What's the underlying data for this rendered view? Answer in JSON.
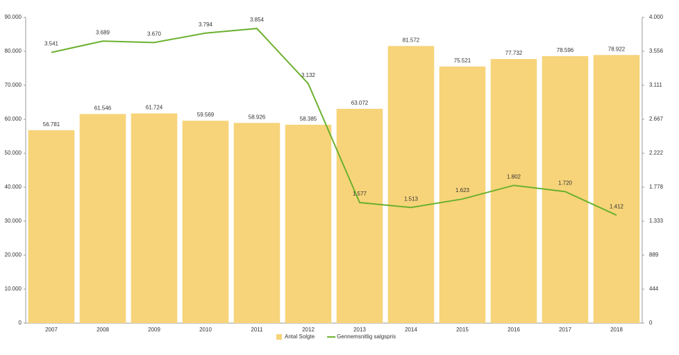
{
  "chart_data": {
    "type": "bar",
    "categories": [
      "2007",
      "2008",
      "2009",
      "2010",
      "2011",
      "2012",
      "2013",
      "2014",
      "2015",
      "2016",
      "2017",
      "2018"
    ],
    "series": [
      {
        "name": "Antal Solgte",
        "type": "bar",
        "color": "#f7d47a",
        "values": [
          56781,
          61546,
          61724,
          59569,
          58926,
          58385,
          63072,
          81572,
          75521,
          77732,
          78596,
          78922
        ],
        "value_labels": [
          "56.781",
          "61.546",
          "61.724",
          "59.569",
          "58.926",
          "58.385",
          "63.072",
          "81.572",
          "75.521",
          "77.732",
          "78.596",
          "78.922"
        ]
      },
      {
        "name": "Gennemsnitlig salgspris",
        "type": "line",
        "axis": "y2",
        "color": "#6bb02e",
        "values": [
          3541,
          3689,
          3670,
          3794,
          3854,
          3132,
          1577,
          1513,
          1623,
          1802,
          1720,
          1412
        ],
        "value_labels": [
          "3.541",
          "3.689",
          "3.670",
          "3.794",
          "3.854",
          "3.132",
          "1.577",
          "1.513",
          "1.623",
          "1.802",
          "1.720",
          "1.412"
        ]
      }
    ],
    "ylim": [
      0,
      90000
    ],
    "yticks": [
      0,
      {
        "value": 10000,
        "label": "10.000"
      },
      {
        "value": 20000,
        "label": "20.000"
      },
      {
        "value": 30000,
        "label": "30.000"
      },
      {
        "value": 40000,
        "label": "40.000"
      },
      {
        "value": 50000,
        "label": "50.000"
      },
      {
        "value": 60000,
        "label": "60.000"
      },
      {
        "value": 70000,
        "label": "70.000"
      },
      {
        "value": 80000,
        "label": "80.000"
      },
      {
        "value": 90000,
        "label": "90.000"
      }
    ],
    "y2lim": [
      0,
      4000
    ],
    "y2ticks": [
      0,
      444,
      889,
      {
        "value": 1333,
        "label": "1.333"
      },
      {
        "value": 1778,
        "label": "1.778"
      },
      {
        "value": 2222,
        "label": "2.222"
      },
      {
        "value": 2667,
        "label": "2.667"
      },
      {
        "value": 3111,
        "label": "3.111"
      },
      {
        "value": 3556,
        "label": "3.556"
      },
      {
        "value": 4000,
        "label": "4.000"
      }
    ],
    "legend": "bottom"
  }
}
